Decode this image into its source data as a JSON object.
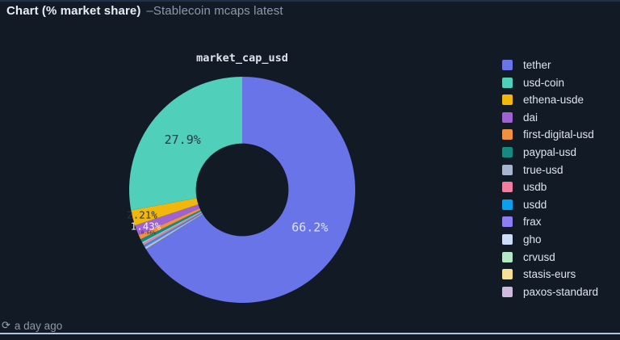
{
  "header": {
    "title": "Chart (% market share)",
    "subtitle": "–Stablecoin mcaps latest"
  },
  "footer": {
    "updated": "a day ago"
  },
  "chart_data": {
    "type": "pie",
    "title": "market_cap_usd",
    "hole": 0.41,
    "legend_position": "right",
    "background": "#121b25",
    "clockwise_order": [
      "tether",
      "paxos-standard",
      "stasis-eurs",
      "crvusd",
      "gho",
      "frax",
      "usdd",
      "usdb",
      "true-usd",
      "paypal-usd",
      "first-digital-usd",
      "dai",
      "ethena-usde",
      "usd-coin"
    ],
    "slices": [
      {
        "name": "tether",
        "value": 66.2,
        "color": "#6874e8",
        "label": "66.2%",
        "label_color": "#dfe3ec"
      },
      {
        "name": "usd-coin",
        "value": 27.9,
        "color": "#50cfba",
        "label": "27.9%",
        "label_color": "#2b3442"
      },
      {
        "name": "ethena-usde",
        "value": 2.21,
        "color": "#f2b70c",
        "label": "2.21%",
        "label_color": "#2b3442"
      },
      {
        "name": "dai",
        "value": 1.43,
        "color": "#9f62d2",
        "label": "1.43%",
        "label_color": "#f0f2f6"
      },
      {
        "name": "first-digital-usd",
        "value": 0.66,
        "color": "#f2903f",
        "label": "0.66%",
        "label_color": "#2b3442"
      },
      {
        "name": "paypal-usd",
        "value": 0.45,
        "color": "#178a7f",
        "label": "",
        "label_color": ""
      },
      {
        "name": "true-usd",
        "value": 0.28,
        "color": "#a7b5cf",
        "label": "",
        "label_color": ""
      },
      {
        "name": "usdb",
        "value": 0.24,
        "color": "#f27d9d",
        "label": "",
        "label_color": ""
      },
      {
        "name": "usdd",
        "value": 0.2,
        "color": "#09a0f0",
        "label": "",
        "label_color": ""
      },
      {
        "name": "frax",
        "value": 0.15,
        "color": "#8e7df2",
        "label": "",
        "label_color": ""
      },
      {
        "name": "gho",
        "value": 0.1,
        "color": "#cfdcf7",
        "label": "",
        "label_color": ""
      },
      {
        "name": "crvusd",
        "value": 0.09,
        "color": "#b4e8c6",
        "label": "",
        "label_color": ""
      },
      {
        "name": "stasis-eurs",
        "value": 0.05,
        "color": "#f7e096",
        "label": "",
        "label_color": ""
      },
      {
        "name": "paxos-standard",
        "value": 0.04,
        "color": "#cfbade",
        "label": "",
        "label_color": ""
      }
    ]
  }
}
